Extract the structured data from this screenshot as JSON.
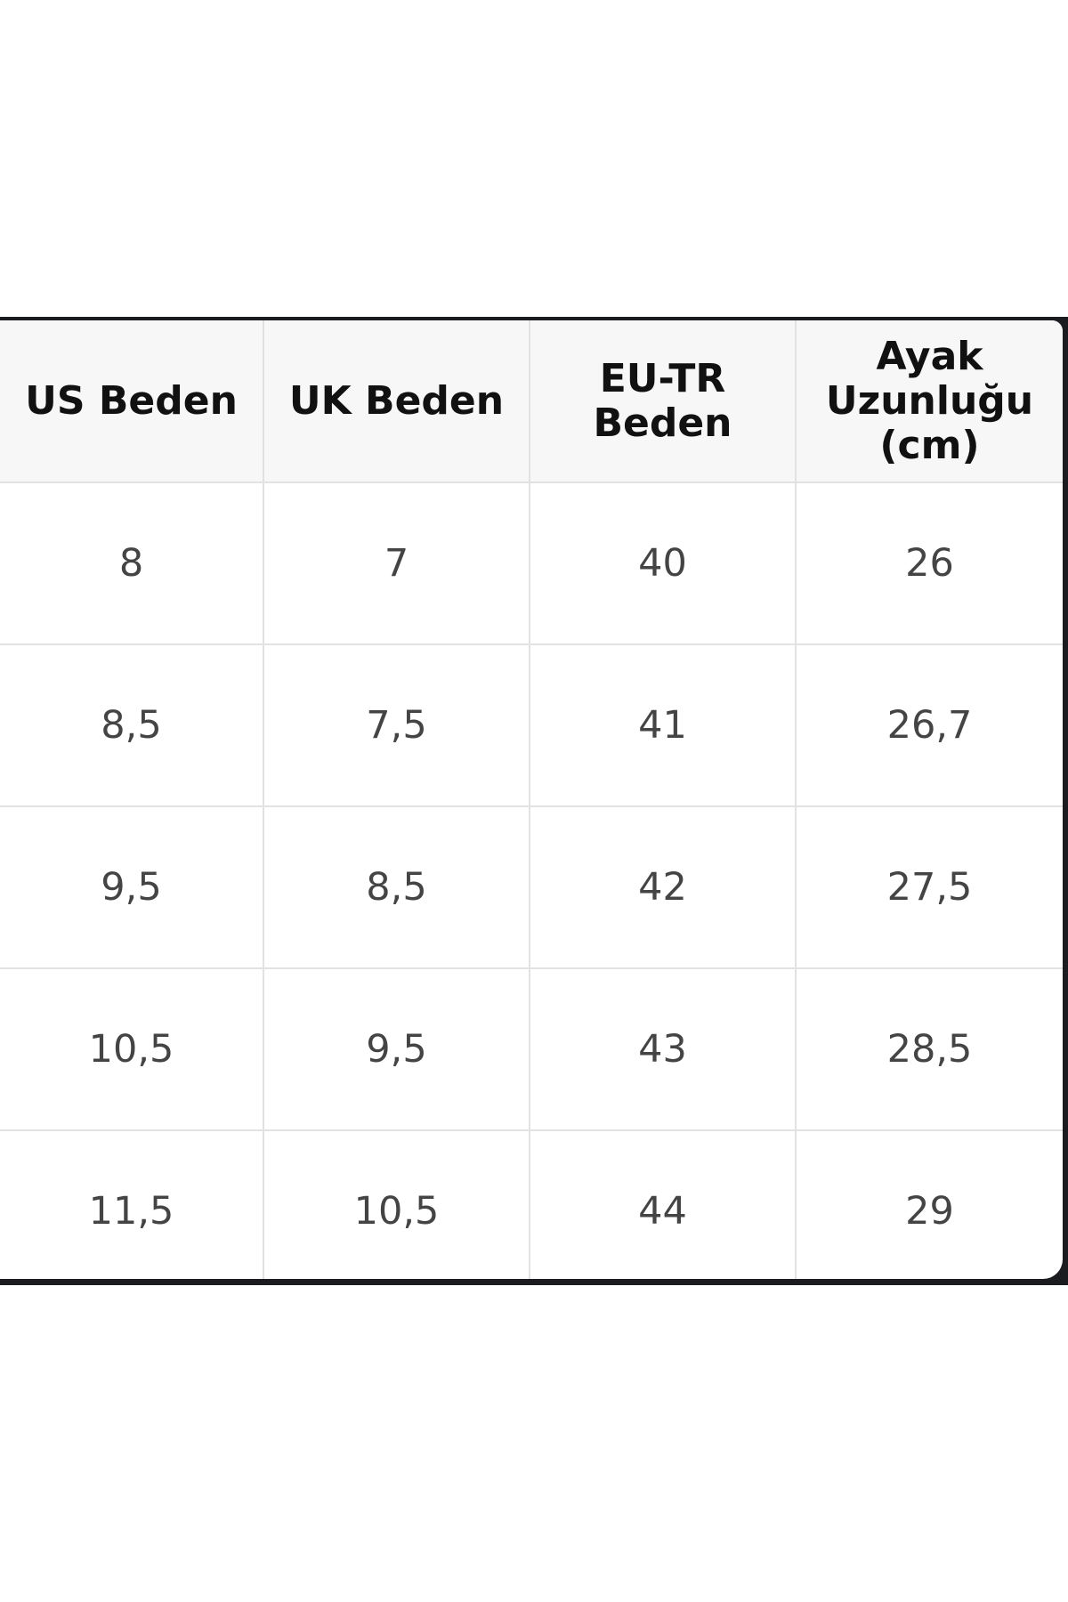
{
  "table": {
    "headers": [
      "US Beden",
      "UK Beden",
      "EU-TR Beden",
      "Ayak Uzunluğu (cm)"
    ],
    "rows": [
      [
        "8",
        "7",
        "40",
        "26"
      ],
      [
        "8,5",
        "7,5",
        "41",
        "26,7"
      ],
      [
        "9,5",
        "8,5",
        "42",
        "27,5"
      ],
      [
        "10,5",
        "9,5",
        "43",
        "28,5"
      ],
      [
        "11,5",
        "10,5",
        "44",
        "29"
      ]
    ]
  }
}
